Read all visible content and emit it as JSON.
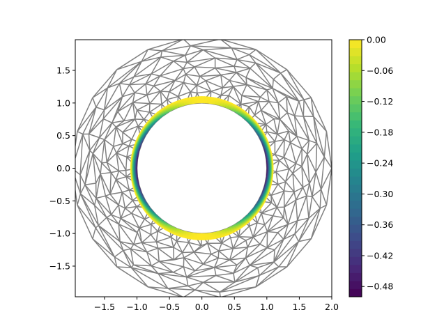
{
  "chart_data": {
    "type": "tricontourf",
    "xlim": [
      -1.95,
      2.0
    ],
    "ylim": [
      -1.97,
      1.97
    ],
    "x_ticks": [
      -1.5,
      -1.0,
      -0.5,
      0.0,
      0.5,
      1.0,
      1.5,
      2.0
    ],
    "x_tick_labels": [
      "−1.5",
      "−1.0",
      "−0.5",
      "0.0",
      "0.5",
      "1.0",
      "1.5",
      "2.0"
    ],
    "y_ticks": [
      -1.5,
      -1.0,
      -0.5,
      0.0,
      0.5,
      1.0,
      1.5
    ],
    "y_tick_labels": [
      "−1.5",
      "−1.0",
      "−0.5",
      "0.0",
      "0.5",
      "1.0",
      "1.5"
    ],
    "mesh": {
      "inner_radius": 1.0,
      "outer_radius": 2.0,
      "color": "#808080"
    },
    "contour_band": {
      "inner_radius": 1.0,
      "outer_radius": 1.1
    },
    "colorbar": {
      "range": [
        -0.5,
        0.0
      ],
      "ticks": [
        0.0,
        -0.06,
        -0.12,
        -0.18,
        -0.24,
        -0.3,
        -0.36,
        -0.42,
        -0.48
      ],
      "tick_labels": [
        "0.00",
        "−0.06",
        "−0.12",
        "−0.18",
        "−0.24",
        "−0.30",
        "−0.36",
        "−0.42",
        "−0.48"
      ],
      "colormap": "viridis",
      "colormap_stops": [
        "#440154",
        "#482878",
        "#3e4a89",
        "#31688e",
        "#26828e",
        "#1f9e89",
        "#35b779",
        "#6ece58",
        "#b5de2b",
        "#fde725"
      ]
    }
  }
}
